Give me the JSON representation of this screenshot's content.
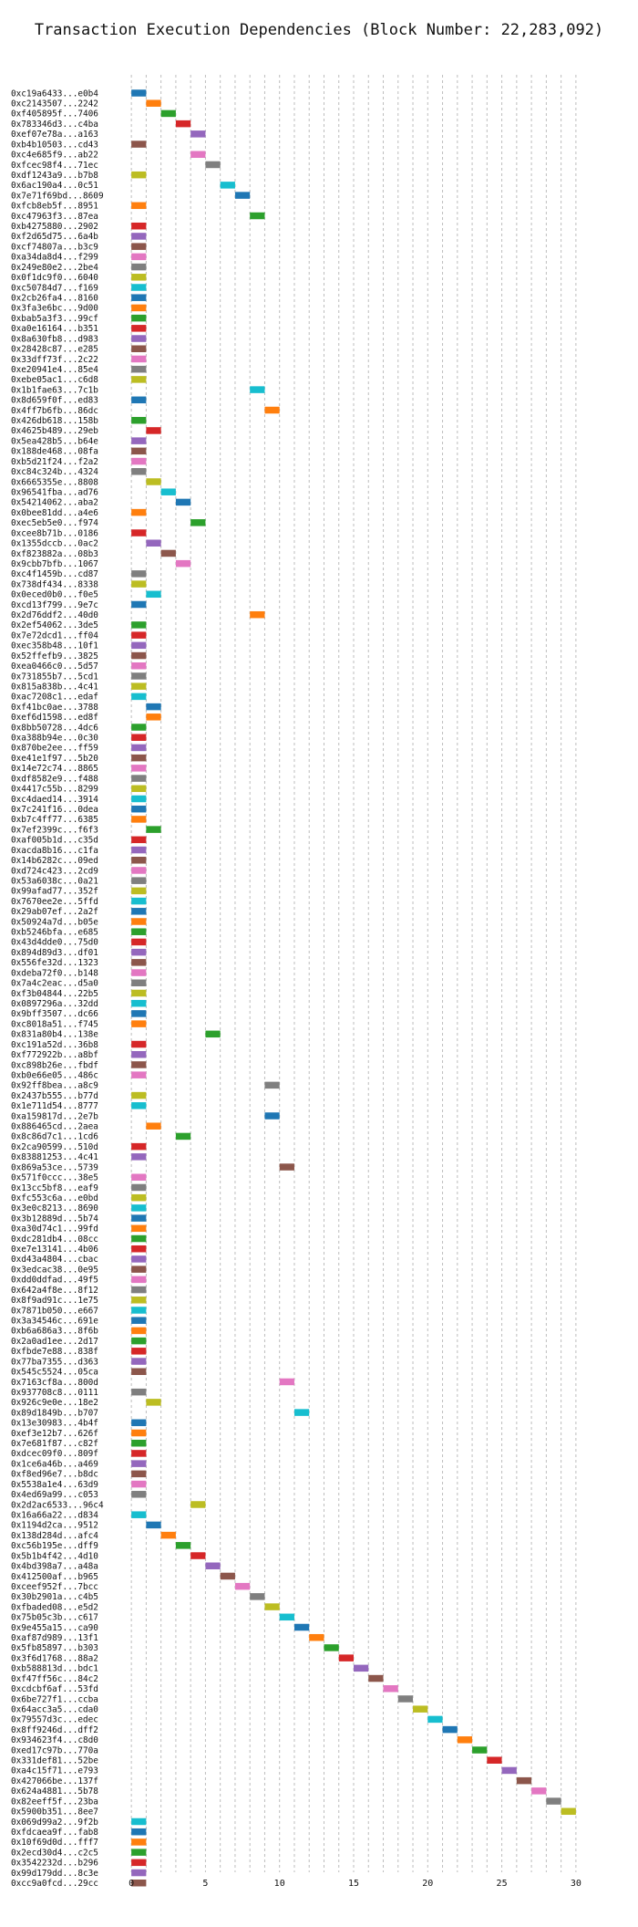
{
  "chart_data": {
    "type": "bar",
    "orientation": "horizontal-gantt",
    "title": "Transaction Execution Dependencies (Block Number: 22,283,092)",
    "xlabel": "",
    "ylabel": "",
    "xlim": [
      -0.5,
      30.5
    ],
    "xticks": [
      0,
      5,
      10,
      15,
      20,
      25,
      30
    ],
    "grid": true,
    "legend": "none",
    "palette": [
      "#1f77b4",
      "#ff7f0e",
      "#2ca02c",
      "#d62728",
      "#9467bd",
      "#8c564b",
      "#e377c2",
      "#7f7f7f",
      "#bcbd22",
      "#17becf"
    ],
    "labels": [
      "0xc19a6433...e0b4",
      "0xc2143507...2242",
      "0xf405895f...7406",
      "0x783346d3...c4ba",
      "0xef07e78a...a163",
      "0xb4b10503...cd43",
      "0xc4e685f9...ab22",
      "0xfcec98f4...71ec",
      "0xdf1243a9...b7b8",
      "0x6ac190a4...0c51",
      "0x7e71f69bd...8609",
      "0xfcb8eb5f...8951",
      "0xc47963f3...87ea",
      "0xb4275880...2902",
      "0xf2d65d75...6a4b",
      "0xcf74807a...b3c9",
      "0xa34da8d4...f299",
      "0x249e80e2...2be4",
      "0x0f1dc9f0...6040",
      "0xc50784d7...f169",
      "0x2cb26fa4...8160",
      "0x3fa3e6bc...9d00",
      "0xbab5a3f3...99cf",
      "0xa0e16164...b351",
      "0x8a630fb8...d983",
      "0x28428c87...e285",
      "0x33dff73f...2c22",
      "0xe20941e4...85e4",
      "0xebe05ac1...c6d8",
      "0x1b1fae63...7c1b",
      "0x8d659f0f...ed83",
      "0x4ff7b6fb...86dc",
      "0x426db618...158b",
      "0x4625b489...29eb",
      "0x5ea428b5...b64e",
      "0x188de468...08fa",
      "0xb5d21f24...f2a2",
      "0xc84c324b...4324",
      "0x6665355e...8808",
      "0x96541fba...ad76",
      "0x54214062...aba2",
      "0x0bee81dd...a4e6",
      "0xec5eb5e0...f974",
      "0xcee8b71b...0186",
      "0x1355dccb...0ac2",
      "0xf823882a...08b3",
      "0x9cbb7bfb...1067",
      "0xc4f1459b...cd87",
      "0x738df434...8338",
      "0x0eced0b0...f0e5",
      "0xcd13f799...9e7c",
      "0x2d76ddf2...40d0",
      "0x2ef54062...3de5",
      "0x7e72dcd1...ff04",
      "0xec358b48...10f1",
      "0x52ffefb9...3825",
      "0xea0466c0...5d57",
      "0x731855b7...5cd1",
      "0x815a838b...4c41",
      "0xac7208c1...edaf",
      "0xf41bc0ae...3788",
      "0xef6d1598...ed8f",
      "0x8bb50728...4dc6",
      "0xa388b94e...0c30",
      "0x870be2ee...ff59",
      "0xe41e1f97...5b20",
      "0x14e72c74...8865",
      "0xdf8582e9...f488",
      "0x4417c55b...8299",
      "0xc4daed14...3914",
      "0x7c241f16...0dea",
      "0xb7c4ff77...6385",
      "0x7ef2399c...f6f3",
      "0xaf005b1d...c35d",
      "0xacda8b16...c1fa",
      "0x14b6282c...09ed",
      "0xd724c423...2cd9",
      "0x53a6038c...0a21",
      "0x99afad77...352f",
      "0x7670ee2e...5ffd",
      "0x29ab07ef...2a2f",
      "0x50924a7d...b05e",
      "0xb5246bfa...e685",
      "0x43d4dde0...75d0",
      "0x894d89d3...df01",
      "0x556fe32d...1323",
      "0xdeba72f0...b148",
      "0x7a4c2eac...d5a0",
      "0xf3b04844...22b5",
      "0x0897296a...32dd",
      "0x9bff3507...dc66",
      "0xc8018a51...f745",
      "0x831a80b4...138e",
      "0xc191a52d...36b8",
      "0xf772922b...a8bf",
      "0xc898b26e...fbdf",
      "0xb0e66e05...486c",
      "0x92ff8bea...a8c9",
      "0x2437b555...b77d",
      "0x1e711d54...8777",
      "0xa159817d...2e7b",
      "0x886465cd...2aea",
      "0x8c86d7c1...1cd6",
      "0x2ca90599...510d",
      "0x83881253...4c41",
      "0x869a53ce...5739",
      "0x571f0ccc...38e5",
      "0x13cc5bf8...eaf9",
      "0xfc553c6a...e0bd",
      "0x3e0c8213...8690",
      "0x3b12889d...5b74",
      "0xa30d74c1...99fd",
      "0xdc281db4...08cc",
      "0xe7e13141...4b06",
      "0xd43a4804...cbac",
      "0x3edcac38...0e95",
      "0xdd0ddfad...49f5",
      "0x642a4f8e...8f12",
      "0x8f9ad91c...1e75",
      "0x7871b050...e667",
      "0x3a34546c...691e",
      "0xb6a686a3...8f6b",
      "0x2a0ad1ee...2d17",
      "0xfbde7e88...838f",
      "0x77ba7355...d363",
      "0x545c5524...05ca",
      "0x7163cf8a...800d",
      "0x937708c8...0111",
      "0x926c9e0e...18e2",
      "0x89d1849b...b707",
      "0x13e30983...4b4f",
      "0xef3e12b7...626f",
      "0x7e681f87...c82f",
      "0xdcec09f0...809f",
      "0x1ce6a46b...a469",
      "0xf8ed96e7...b8dc",
      "0x5538a1e4...63d9",
      "0x4ed69a99...c053",
      "0x2d2ac6533...96c4",
      "0x16a66a22...d834",
      "0x1194d2ca...9512",
      "0x138d284d...afc4",
      "0xc56b195e...dff9",
      "0x5b1b4f42...4d10",
      "0x4bd398a7...a48a",
      "0x412500af...b965",
      "0xceef952f...7bcc",
      "0x30b2901a...c4b5",
      "0xfbaded08...e5d2",
      "0x75b05c3b...c617",
      "0x9e455a15...ca90",
      "0xaf87d989...13f1",
      "0x5fb85897...b303",
      "0x3f6d1768...88a2",
      "0xb588813d...bdc1",
      "0xf47ff56c...84c2",
      "0xcdcbf6af...53fd",
      "0x6be727f1...ccba",
      "0x64acc3a5...cda0",
      "0x79557d3c...edec",
      "0x8ff9246d...dff2",
      "0x934623f4...c8d0",
      "0xed17c97b...770a",
      "0x331def81...52be",
      "0xa4c15f71...e793",
      "0x427066be...137f",
      "0x624a4881...5b78",
      "0x82eeff5f...23ba",
      "0x5900b351...8ee7",
      "0x069d99a2...9f2b",
      "0xfdcaea9f...fab8",
      "0x10f69d0d...fff7",
      "0x2ecd30d4...c2c5",
      "0x3542232d...b296",
      "0x99d179dd...8c3e",
      "0xcc9a0fcd...29cc"
    ],
    "starts": [
      0,
      1,
      2,
      3,
      4,
      0,
      4,
      5,
      0,
      6,
      7,
      0,
      8,
      0,
      0,
      0,
      0,
      0,
      0,
      0,
      0,
      0,
      0,
      0,
      0,
      0,
      0,
      0,
      0,
      8,
      0,
      9,
      0,
      1,
      0,
      0,
      0,
      0,
      1,
      2,
      3,
      0,
      4,
      0,
      1,
      2,
      3,
      0,
      0,
      1,
      0,
      8,
      0,
      0,
      0,
      0,
      0,
      0,
      0,
      0,
      1,
      1,
      0,
      0,
      0,
      0,
      0,
      0,
      0,
      0,
      0,
      0,
      1,
      0,
      0,
      0,
      0,
      0,
      0,
      0,
      0,
      0,
      0,
      0,
      0,
      0,
      0,
      0,
      0,
      0,
      0,
      0,
      5,
      0,
      0,
      0,
      0,
      9,
      0,
      0,
      9,
      1,
      3,
      0,
      0,
      10,
      0,
      0,
      0,
      0,
      0,
      0,
      0,
      0,
      0,
      0,
      0,
      0,
      0,
      0,
      0,
      0,
      0,
      0,
      0,
      0,
      10,
      0,
      1,
      11,
      0,
      0,
      0,
      0,
      0,
      0,
      0,
      0,
      4,
      0,
      1,
      2,
      3,
      4,
      5,
      6,
      7,
      8,
      9,
      10,
      11,
      12,
      13,
      14,
      15,
      16,
      17,
      18,
      19,
      20,
      21,
      22,
      23,
      24,
      25,
      26,
      27,
      28,
      29,
      0,
      0,
      0,
      0,
      0,
      0,
      0
    ],
    "colors": [
      0,
      1,
      2,
      3,
      4,
      5,
      6,
      7,
      8,
      9,
      0,
      1,
      2,
      3,
      4,
      5,
      6,
      7,
      8,
      9,
      0,
      1,
      2,
      3,
      4,
      5,
      6,
      7,
      8,
      9,
      0,
      1,
      2,
      3,
      4,
      5,
      6,
      7,
      8,
      9,
      0,
      1,
      2,
      3,
      4,
      5,
      6,
      7,
      8,
      9,
      0,
      1,
      2,
      3,
      4,
      5,
      6,
      7,
      8,
      9,
      0,
      1,
      2,
      3,
      4,
      5,
      6,
      7,
      8,
      9,
      0,
      1,
      2,
      3,
      4,
      5,
      6,
      7,
      8,
      9,
      0,
      1,
      2,
      3,
      4,
      5,
      6,
      7,
      8,
      9,
      0,
      1,
      2,
      3,
      4,
      5,
      6,
      7,
      8,
      9,
      0,
      1,
      2,
      3,
      4,
      5,
      6,
      7,
      8,
      9,
      0,
      1,
      2,
      3,
      4,
      5,
      6,
      7,
      8,
      9,
      0,
      1,
      2,
      3,
      4,
      5,
      6,
      7,
      8,
      9,
      0,
      1,
      2,
      3,
      4,
      5,
      6,
      7,
      8,
      9,
      0,
      1,
      2,
      3,
      4,
      5,
      6,
      7,
      8,
      9,
      0,
      1,
      2,
      3,
      4,
      5,
      6,
      7,
      8,
      9,
      0,
      1,
      2,
      3,
      4,
      5,
      6,
      7,
      8,
      9,
      0,
      1,
      2,
      3,
      4,
      5
    ],
    "duration": 1
  }
}
